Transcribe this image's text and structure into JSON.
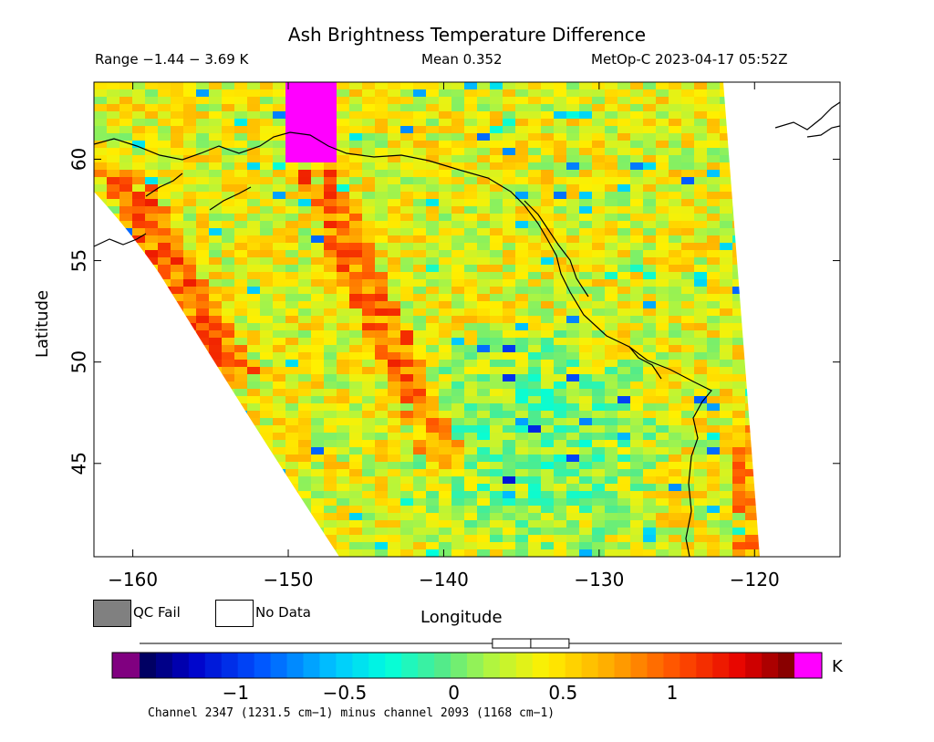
{
  "header": {
    "title": "Ash Brightness Temperature Difference",
    "range": "Range −1.44 − 3.69 K",
    "mean": "Mean 0.352",
    "satellite": "MetOp-C 2023-04-17 05:52Z"
  },
  "axes": {
    "xlabel": "Longitude",
    "ylabel": "Latitude",
    "xticks": [
      "−160",
      "−150",
      "−140",
      "−130",
      "−120"
    ],
    "yticks": [
      "45",
      "50",
      "55",
      "60"
    ],
    "xrange": [
      -162.5,
      -114.5
    ],
    "yrange": [
      40.4,
      63.8
    ]
  },
  "legend": {
    "qc_fail": "QC Fail",
    "no_data": "No Data",
    "qc_fail_color": "#808080",
    "no_data_color": "#ffffff"
  },
  "colorbar": {
    "unit": "K",
    "ticks": [
      "−1",
      "−0.5",
      "0",
      "0.5",
      "1"
    ],
    "tick_values": [
      -1,
      -0.5,
      0,
      0.5,
      1
    ],
    "range": [
      -1.44,
      1.56
    ],
    "under_color": "#800080",
    "over_color": "#ff00ff",
    "mean_value": 0.352
  },
  "footer": {
    "description": "Channel 2347 (1231.5 cm−1) minus channel 2093 (1168 cm−1)"
  }
}
